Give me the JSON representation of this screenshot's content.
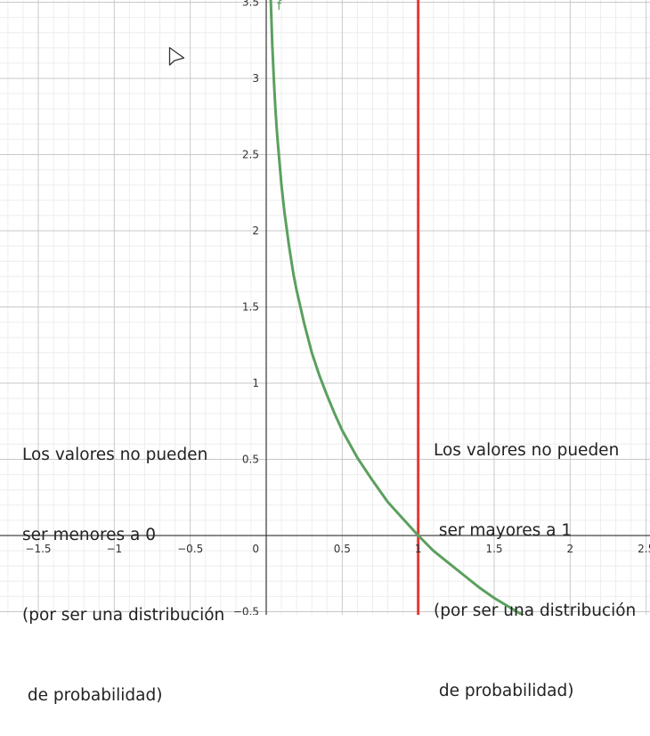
{
  "chart_data": {
    "type": "line",
    "xlim": [
      -1.76,
      2.5
    ],
    "ylim": [
      -0.5,
      3.5
    ],
    "grid": true,
    "x_ticks": [
      {
        "value": -1.5,
        "label": "−1.5"
      },
      {
        "value": -1,
        "label": "−1"
      },
      {
        "value": -0.5,
        "label": "−0.5"
      },
      {
        "value": 0,
        "label": "0"
      },
      {
        "value": 0.5,
        "label": "0.5"
      },
      {
        "value": 1,
        "label": "1"
      },
      {
        "value": 1.5,
        "label": "1.5"
      },
      {
        "value": 2,
        "label": "2"
      },
      {
        "value": 2.5,
        "label": "2.5"
      }
    ],
    "y_ticks": [
      {
        "value": 0.5,
        "label": "0.5"
      },
      {
        "value": 1,
        "label": "1"
      },
      {
        "value": 1.5,
        "label": "1.5"
      },
      {
        "value": 2,
        "label": "2"
      },
      {
        "value": 2.5,
        "label": "2.5"
      },
      {
        "value": 3,
        "label": "3"
      },
      {
        "value": 3.5,
        "label": "3.5"
      },
      {
        "value": -0.5,
        "label": "−0.5"
      }
    ],
    "series": [
      {
        "name": "f",
        "color": "#5ba05e",
        "points": [
          [
            0.015,
            4.2
          ],
          [
            0.02,
            3.91
          ],
          [
            0.025,
            3.69
          ],
          [
            0.03,
            3.51
          ],
          [
            0.04,
            3.22
          ],
          [
            0.05,
            3.0
          ],
          [
            0.06,
            2.81
          ],
          [
            0.07,
            2.66
          ],
          [
            0.08,
            2.53
          ],
          [
            0.1,
            2.3
          ],
          [
            0.12,
            2.12
          ],
          [
            0.15,
            1.9
          ],
          [
            0.18,
            1.71
          ],
          [
            0.2,
            1.61
          ],
          [
            0.25,
            1.39
          ],
          [
            0.3,
            1.2
          ],
          [
            0.35,
            1.05
          ],
          [
            0.4,
            0.92
          ],
          [
            0.45,
            0.8
          ],
          [
            0.5,
            0.69
          ],
          [
            0.6,
            0.51
          ],
          [
            0.7,
            0.36
          ],
          [
            0.8,
            0.22
          ],
          [
            0.9,
            0.11
          ],
          [
            1.0,
            0.0
          ],
          [
            1.1,
            -0.1
          ],
          [
            1.2,
            -0.18
          ],
          [
            1.3,
            -0.26
          ],
          [
            1.4,
            -0.34
          ],
          [
            1.5,
            -0.41
          ],
          [
            1.6,
            -0.47
          ],
          [
            1.7,
            -0.53
          ],
          [
            1.8,
            -0.59
          ]
        ]
      }
    ],
    "vertical_lines": [
      {
        "x": 1,
        "color": "#e53935"
      }
    ],
    "curve_label": "f"
  },
  "annotations": {
    "left": [
      "Los valores no pueden",
      "ser menores a 0",
      "(por ser una distribución",
      " de probabilidad)"
    ],
    "right": [
      "Los valores no pueden",
      " ser mayores a 1",
      "(por ser una distribución",
      " de probabilidad)"
    ]
  },
  "icons": {
    "cursor": "mouse-pointer-icon"
  }
}
